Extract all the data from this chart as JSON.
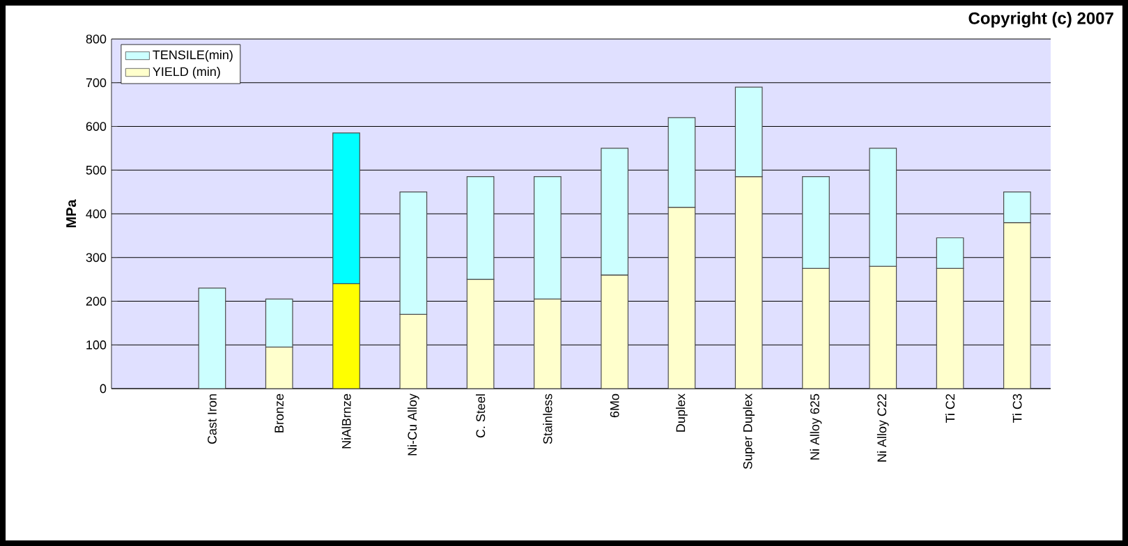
{
  "chart_data": {
    "type": "bar",
    "stacked": true,
    "ylabel": "MPa",
    "annotations": [
      "Copyright (c) 2007"
    ],
    "categories": [
      null,
      "Cast Iron",
      "Bronze",
      "NiAlBrnze",
      "Ni-Cu Alloy",
      "C. Steel",
      "Stainless",
      "6Mo",
      "Duplex",
      "Super Duplex",
      "Ni Alloy 625",
      "Ni Alloy C22",
      "Ti C2",
      "Ti C3"
    ],
    "series": [
      {
        "name": "YIELD (min)",
        "color": "#ffffcc",
        "colors": [
          "#ffffcc",
          "#ffffcc",
          "#ffffcc",
          "#ffff00",
          "#ffffcc",
          "#ffffcc",
          "#ffffcc",
          "#ffffcc",
          "#ffffcc",
          "#ffffcc",
          "#ffffcc",
          "#ffffcc",
          "#ffffcc",
          "#ffffcc"
        ],
        "values": [
          null,
          null,
          95,
          240,
          170,
          250,
          205,
          260,
          415,
          485,
          275,
          280,
          275,
          380
        ]
      },
      {
        "name": "TENSILE(min)",
        "color": "#ccffff",
        "colors": [
          "#ccffff",
          "#ccffff",
          "#ccffff",
          "#00ffff",
          "#ccffff",
          "#ccffff",
          "#ccffff",
          "#ccffff",
          "#ccffff",
          "#ccffff",
          "#ccffff",
          "#ccffff",
          "#ccffff",
          "#ccffff"
        ],
        "values": [
          null,
          230,
          110,
          345,
          280,
          235,
          280,
          290,
          205,
          205,
          210,
          270,
          70,
          70
        ]
      }
    ],
    "ylim": [
      0,
      800
    ],
    "yticks": [
      0,
      100,
      200,
      300,
      400,
      500,
      600,
      700,
      800
    ],
    "grid": "y",
    "legend": "top left"
  }
}
